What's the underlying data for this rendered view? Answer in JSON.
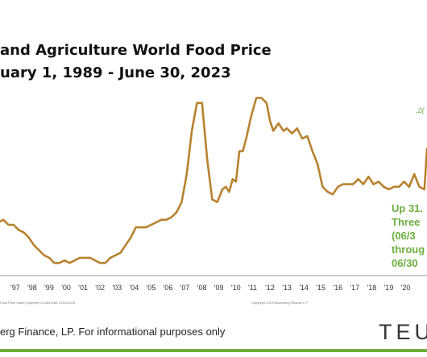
{
  "title": {
    "line1": "and Agriculture World Food Price",
    "line2": "uary 1, 1989 - June 30, 2023"
  },
  "annotation": {
    "line1": "Up 31.",
    "line2": "Three",
    "line3": "(06/3",
    "line4": "throug",
    "line5": "06/30"
  },
  "peak_label": ".2(",
  "source_left": "Food Price Index) Quarterly 01JAN1989-13JUL2023",
  "source_right": "Copyright 2023 Bloomberg Finance L.P.",
  "footer": {
    "text": "erg Finance, LP.  For informational purposes only",
    "brand": "TEU"
  },
  "colors": {
    "line": "#b8822f",
    "annotation": "#6cae3e",
    "footer_rule": "#6cae3e"
  },
  "chart_data": {
    "type": "line",
    "title": "and Agriculture World Food Price",
    "subtitle": "uary 1, 1989 - June 30, 2023",
    "xlabel": "",
    "ylabel": "",
    "x_ticks": [
      "'97",
      "'98",
      "'99",
      "'00",
      "'01",
      "'02",
      "'03",
      "'04",
      "'05",
      "'06",
      "'07",
      "'08",
      "'09",
      "'10",
      "'11",
      "'12",
      "'13",
      "'14",
      "'15",
      "'16",
      "'17",
      "'18",
      "'19",
      "'20"
    ],
    "x_range": [
      1996.1,
      2021.25
    ],
    "ylim": [
      50,
      130
    ],
    "grid": false,
    "series": [
      {
        "x": [
          1996.0,
          1996.3,
          1996.6,
          1996.9,
          1997.2,
          1997.5,
          1997.8,
          1998.1,
          1998.4,
          1998.7,
          1999.0,
          1999.3,
          1999.6,
          1999.9,
          2000.2,
          2000.5,
          2000.8,
          2001.1,
          2001.4,
          2001.7,
          2002.0,
          2002.3,
          2002.6,
          2002.9,
          2003.2,
          2003.5,
          2003.8,
          2004.1,
          2004.4,
          2004.7,
          2005.0,
          2005.3,
          2005.6,
          2005.9,
          2006.2,
          2006.5,
          2006.8,
          2007.1,
          2007.4,
          2007.7,
          2008.0,
          2008.3,
          2008.6,
          2008.9,
          2009.2,
          2009.4,
          2009.6,
          2009.8,
          2010.0,
          2010.2,
          2010.4,
          2010.6,
          2010.9,
          2011.2,
          2011.5,
          2011.8,
          2012.0,
          2012.2,
          2012.5,
          2012.8,
          2013.0,
          2013.3,
          2013.6,
          2013.9,
          2014.2,
          2014.5,
          2014.8,
          2015.1,
          2015.4,
          2015.7,
          2016.0,
          2016.3,
          2016.6,
          2016.9,
          2017.2,
          2017.5,
          2017.8,
          2018.1,
          2018.4,
          2018.7,
          2019.0,
          2019.3,
          2019.6,
          2019.9,
          2020.2,
          2020.5,
          2020.8,
          2021.1,
          2021.25
        ],
        "y": [
          71,
          72,
          70,
          70,
          68,
          67,
          65,
          62,
          60,
          58,
          57,
          55,
          55,
          56,
          55,
          56,
          57,
          57,
          57,
          56,
          55,
          55,
          57,
          58,
          59,
          62,
          65,
          69,
          69,
          69,
          70,
          71,
          72,
          72,
          73,
          75,
          79,
          90,
          107,
          118,
          118,
          96,
          80,
          79,
          84,
          85,
          83,
          88,
          87,
          99,
          99,
          104,
          113,
          120,
          120,
          118,
          111,
          107,
          110,
          107,
          108,
          106,
          108,
          104,
          105,
          99,
          94,
          85,
          83,
          82,
          85,
          86,
          86,
          86,
          88,
          86,
          89,
          86,
          87,
          85,
          84,
          85,
          85,
          87,
          85,
          90,
          85,
          84,
          100
        ]
      }
    ]
  }
}
